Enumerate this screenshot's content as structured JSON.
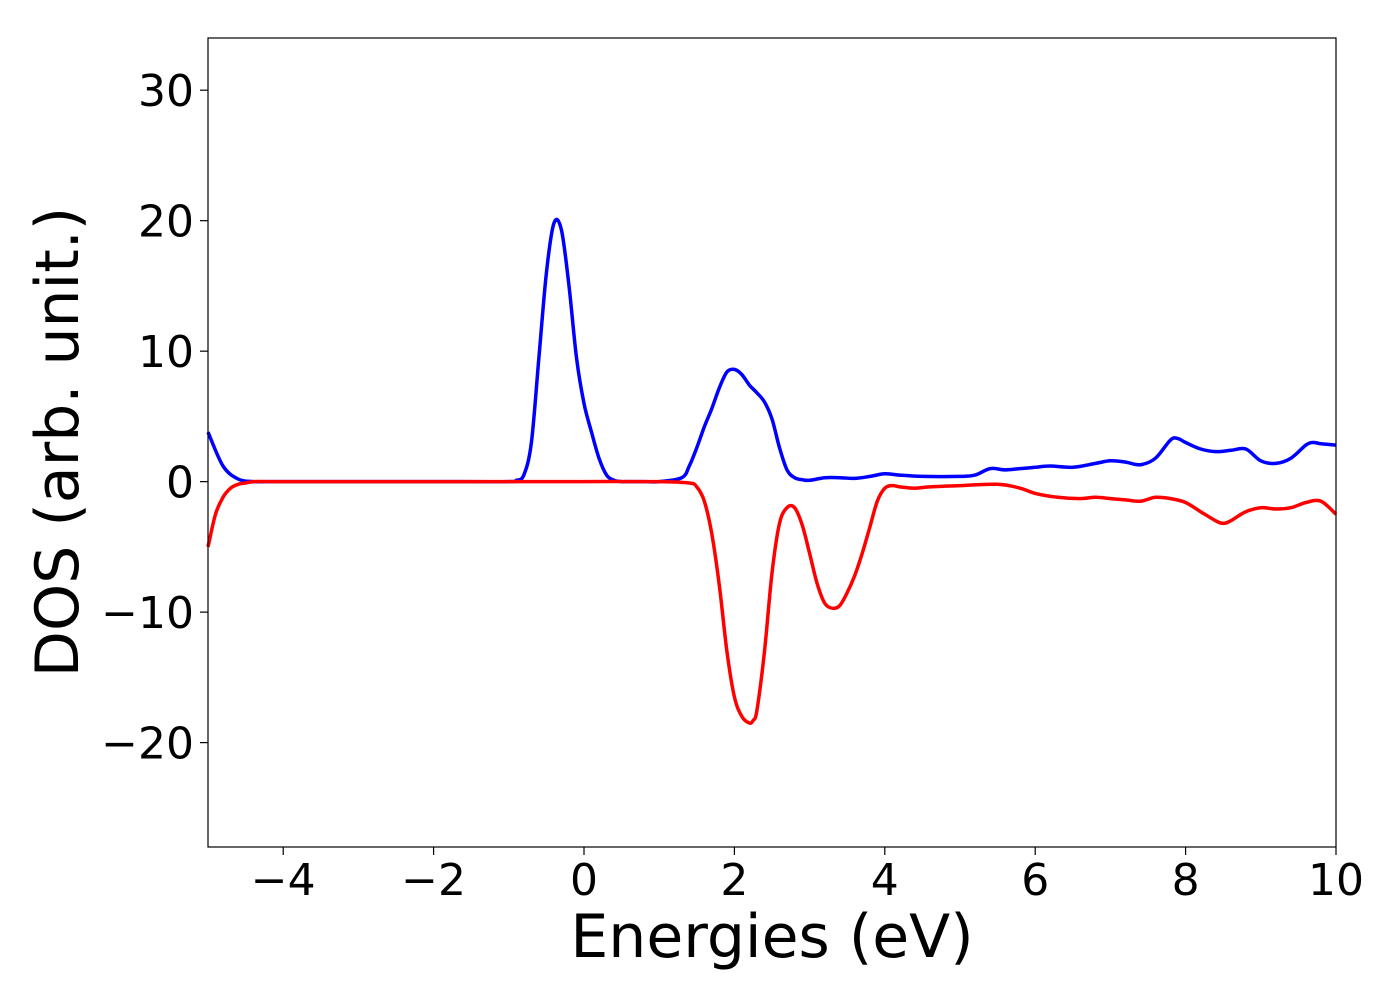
{
  "chart_data": {
    "type": "line",
    "title": "",
    "xlabel": "Energies (eV)",
    "ylabel": "DOS (arb. unit.)",
    "xlim": [
      -5,
      10
    ],
    "ylim": [
      -28,
      34
    ],
    "grid": false,
    "legend": "none",
    "x_ticks": [
      -4,
      -2,
      0,
      2,
      4,
      6,
      8,
      10
    ],
    "x_tick_labels": [
      "−4",
      "−2",
      "0",
      "2",
      "4",
      "6",
      "8",
      "10"
    ],
    "y_ticks": [
      -20,
      -10,
      0,
      10,
      20,
      30
    ],
    "y_tick_labels": [
      "−20",
      "−10",
      "0",
      "10",
      "20",
      "30"
    ],
    "series": [
      {
        "color": "#0000ff",
        "x": [
          -5.0,
          -4.8,
          -4.6,
          -4.4,
          -4.2,
          -4.0,
          -3.0,
          -2.0,
          -1.0,
          -0.9,
          -0.8,
          -0.7,
          -0.6,
          -0.5,
          -0.4,
          -0.3,
          -0.2,
          -0.1,
          0.0,
          0.1,
          0.2,
          0.3,
          0.4,
          0.5,
          0.6,
          0.8,
          1.0,
          1.3,
          1.4,
          1.5,
          1.6,
          1.7,
          1.8,
          1.9,
          2.0,
          2.1,
          2.2,
          2.3,
          2.4,
          2.5,
          2.6,
          2.7,
          2.8,
          2.9,
          3.0,
          3.2,
          3.4,
          3.6,
          3.8,
          4.0,
          4.2,
          4.5,
          5.0,
          5.2,
          5.4,
          5.6,
          5.8,
          6.0,
          6.2,
          6.5,
          6.8,
          7.0,
          7.2,
          7.4,
          7.6,
          7.8,
          7.9,
          8.0,
          8.2,
          8.4,
          8.6,
          8.8,
          9.0,
          9.2,
          9.4,
          9.6,
          9.7,
          9.8,
          10.0
        ],
        "y": [
          3.8,
          1.2,
          0.2,
          0.0,
          0.0,
          0.0,
          0.0,
          0.0,
          0.0,
          0.1,
          0.5,
          3.0,
          9.5,
          16.0,
          19.8,
          19.3,
          15.0,
          9.5,
          6.0,
          3.8,
          1.8,
          0.5,
          0.1,
          0.0,
          0.0,
          0.0,
          0.0,
          0.3,
          1.2,
          2.6,
          4.2,
          5.6,
          7.2,
          8.4,
          8.6,
          8.2,
          7.4,
          6.8,
          6.1,
          4.8,
          2.6,
          0.9,
          0.3,
          0.15,
          0.1,
          0.3,
          0.3,
          0.25,
          0.4,
          0.6,
          0.5,
          0.4,
          0.4,
          0.5,
          1.0,
          0.9,
          1.0,
          1.1,
          1.2,
          1.1,
          1.4,
          1.6,
          1.5,
          1.3,
          1.8,
          3.2,
          3.3,
          3.0,
          2.5,
          2.3,
          2.4,
          2.5,
          1.6,
          1.4,
          1.8,
          2.8,
          3.0,
          2.9,
          2.8
        ]
      },
      {
        "color": "#ff0000",
        "x": [
          -5.0,
          -4.9,
          -4.8,
          -4.7,
          -4.6,
          -4.5,
          -4.4,
          -4.2,
          -4.0,
          -3.0,
          -2.0,
          -1.0,
          0.0,
          1.0,
          1.4,
          1.5,
          1.6,
          1.7,
          1.8,
          1.9,
          2.0,
          2.1,
          2.2,
          2.25,
          2.3,
          2.4,
          2.5,
          2.6,
          2.7,
          2.8,
          2.9,
          3.0,
          3.1,
          3.2,
          3.3,
          3.4,
          3.5,
          3.6,
          3.7,
          3.8,
          3.9,
          4.0,
          4.1,
          4.2,
          4.4,
          4.6,
          5.0,
          5.5,
          5.8,
          6.0,
          6.3,
          6.6,
          6.8,
          7.0,
          7.2,
          7.4,
          7.6,
          7.8,
          8.0,
          8.2,
          8.4,
          8.5,
          8.6,
          8.8,
          9.0,
          9.2,
          9.4,
          9.6,
          9.8,
          10.0
        ],
        "y": [
          -5.0,
          -2.5,
          -1.2,
          -0.5,
          -0.2,
          -0.1,
          0.0,
          0.0,
          0.0,
          0.0,
          0.0,
          0.0,
          0.0,
          0.0,
          -0.1,
          -0.4,
          -1.5,
          -4.0,
          -8.0,
          -13.0,
          -16.5,
          -18.0,
          -18.5,
          -18.3,
          -17.5,
          -13.0,
          -7.0,
          -3.2,
          -2.0,
          -2.0,
          -3.3,
          -5.5,
          -7.8,
          -9.3,
          -9.7,
          -9.5,
          -8.5,
          -7.2,
          -5.5,
          -3.5,
          -1.5,
          -0.5,
          -0.3,
          -0.4,
          -0.5,
          -0.4,
          -0.3,
          -0.2,
          -0.5,
          -0.9,
          -1.2,
          -1.3,
          -1.2,
          -1.3,
          -1.4,
          -1.5,
          -1.2,
          -1.3,
          -1.6,
          -2.3,
          -3.0,
          -3.2,
          -3.0,
          -2.3,
          -2.0,
          -2.1,
          -2.0,
          -1.6,
          -1.5,
          -2.5
        ]
      }
    ]
  }
}
